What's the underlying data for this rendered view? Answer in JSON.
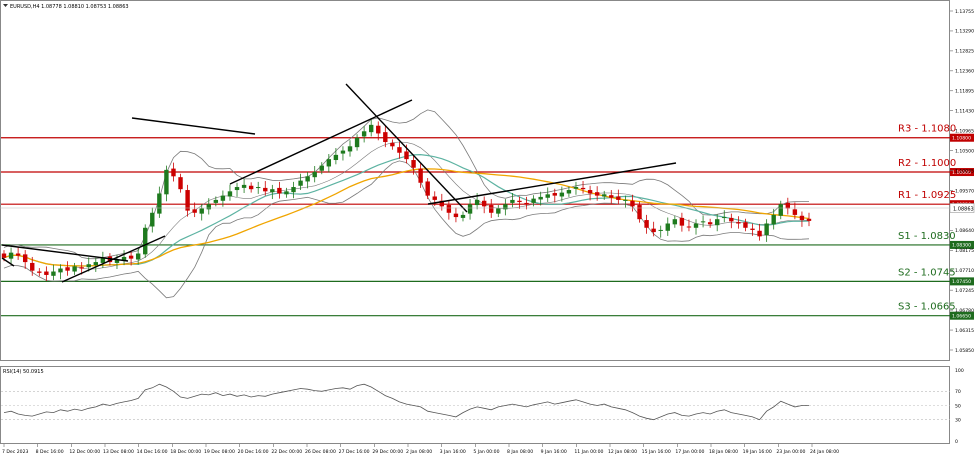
{
  "window_title": "EURUSD,H4  1.08778 1.08810 1.08753 1.08863",
  "colors": {
    "bull": "#1e7a1e",
    "bear": "#cc0000",
    "resistance": "#c00000",
    "support": "#1e6b1e",
    "ma_fast": "#5db3a2",
    "ma_slow": "#f0a500",
    "bollinger": "#7a7a7a",
    "trendline": "#000000",
    "rsi": "#555555"
  },
  "price_axis": {
    "ticks": [
      "1.13755",
      "1.13290",
      "1.12825",
      "1.12360",
      "1.11895",
      "1.11430",
      "1.10965",
      "1.10500",
      "1.10035",
      "1.09570",
      "1.09105",
      "1.08640",
      "1.08175",
      "1.07710",
      "1.07245",
      "1.06780",
      "1.06315",
      "1.05850"
    ],
    "current_price_label": "1.08863"
  },
  "levels": [
    {
      "name": "R3 - 1.1080",
      "tag": "1.10800",
      "type": "resistance"
    },
    {
      "name": "R2 - 1.1000",
      "tag": "1.10000",
      "type": "resistance"
    },
    {
      "name": "R1 - 1.0925",
      "tag": "1.09250",
      "type": "resistance"
    },
    {
      "name": "S1 - 1.0830",
      "tag": "1.08300",
      "type": "support"
    },
    {
      "name": "S2 - 1.0745",
      "tag": "1.07450",
      "type": "support"
    },
    {
      "name": "S3 - 1.0665",
      "tag": "1.06650",
      "type": "support"
    }
  ],
  "rsi": {
    "label": "RSI(14) 50.0915",
    "axis_ticks": [
      "100",
      "70",
      "50",
      "30",
      "0"
    ]
  },
  "time_axis": [
    "7 Dec 2023",
    "8 Dec 16:00",
    "12 Dec 00:00",
    "13 Dec 08:00",
    "14 Dec 16:00",
    "18 Dec 00:00",
    "19 Dec 08:00",
    "20 Dec 16:00",
    "22 Dec 00:00",
    "26 Dec 08:00",
    "27 Dec 16:00",
    "29 Dec 00:00",
    "2 Jan 08:00",
    "3 Jan 16:00",
    "5 Jan 00:00",
    "8 Jan 08:00",
    "9 Jan 16:00",
    "11 Jan 00:00",
    "12 Jan 08:00",
    "15 Jan 16:00",
    "17 Jan 00:00",
    "18 Jan 08:00",
    "19 Jan 16:00",
    "23 Jan 00:00",
    "24 Jan 08:00"
  ],
  "chart_data": {
    "type": "candlestick",
    "symbol": "EURUSD",
    "timeframe": "H4",
    "ylim": [
      1.0585,
      1.1376
    ],
    "candles_close": [
      1.08,
      1.0812,
      1.0805,
      1.079,
      1.077,
      1.0765,
      1.076,
      1.0768,
      1.0775,
      1.077,
      1.078,
      1.0775,
      1.0785,
      1.079,
      1.08,
      1.079,
      1.0795,
      1.0802,
      1.0798,
      1.081,
      1.087,
      1.0905,
      1.095,
      1.1005,
      1.099,
      1.096,
      1.091,
      1.0905,
      1.0915,
      1.0925,
      1.0935,
      1.0945,
      1.0955,
      1.0965,
      1.097,
      1.096,
      1.0965,
      1.0955,
      1.096,
      1.095,
      1.0955,
      1.0965,
      1.098,
      1.099,
      1.1,
      1.1015,
      1.103,
      1.104,
      1.105,
      1.106,
      1.108,
      1.1095,
      1.111,
      1.109,
      1.107,
      1.106,
      1.1045,
      1.103,
      1.101,
      1.0975,
      1.0945,
      1.0935,
      1.092,
      1.0905,
      1.0895,
      1.09,
      1.0925,
      1.0935,
      1.092,
      1.0905,
      1.0915,
      1.0925,
      1.0935,
      1.093,
      1.0925,
      1.0938,
      1.0942,
      1.0948,
      1.0945,
      1.0952,
      1.0958,
      1.0965,
      1.096,
      1.095,
      1.0945,
      1.0948,
      1.094,
      1.0935,
      1.0935,
      1.092,
      1.089,
      1.087,
      1.086,
      1.0865,
      1.088,
      1.089,
      1.0875,
      1.0872,
      1.088,
      1.0885,
      1.0878,
      1.089,
      1.0895,
      1.0885,
      1.088,
      1.087,
      1.0865,
      1.085,
      1.088,
      1.09,
      1.0925,
      1.0915,
      1.09,
      1.0888,
      1.0886
    ],
    "rsi_values": [
      40,
      42,
      38,
      36,
      35,
      38,
      41,
      40,
      44,
      42,
      45,
      43,
      46,
      48,
      52,
      50,
      53,
      55,
      57,
      60,
      72,
      75,
      80,
      76,
      70,
      62,
      60,
      63,
      66,
      65,
      68,
      64,
      66,
      63,
      65,
      62,
      64,
      63,
      66,
      68,
      70,
      72,
      74,
      73,
      71,
      70,
      72,
      74,
      75,
      73,
      78,
      80,
      76,
      70,
      64,
      60,
      55,
      52,
      50,
      48,
      42,
      40,
      38,
      36,
      34,
      40,
      45,
      48,
      46,
      44,
      48,
      50,
      52,
      50,
      48,
      51,
      53,
      55,
      52,
      54,
      56,
      58,
      55,
      52,
      50,
      52,
      48,
      46,
      44,
      40,
      35,
      32,
      30,
      34,
      38,
      40,
      36,
      35,
      38,
      40,
      38,
      42,
      44,
      40,
      38,
      36,
      34,
      30,
      42,
      48,
      56,
      52,
      48,
      50,
      50
    ]
  }
}
